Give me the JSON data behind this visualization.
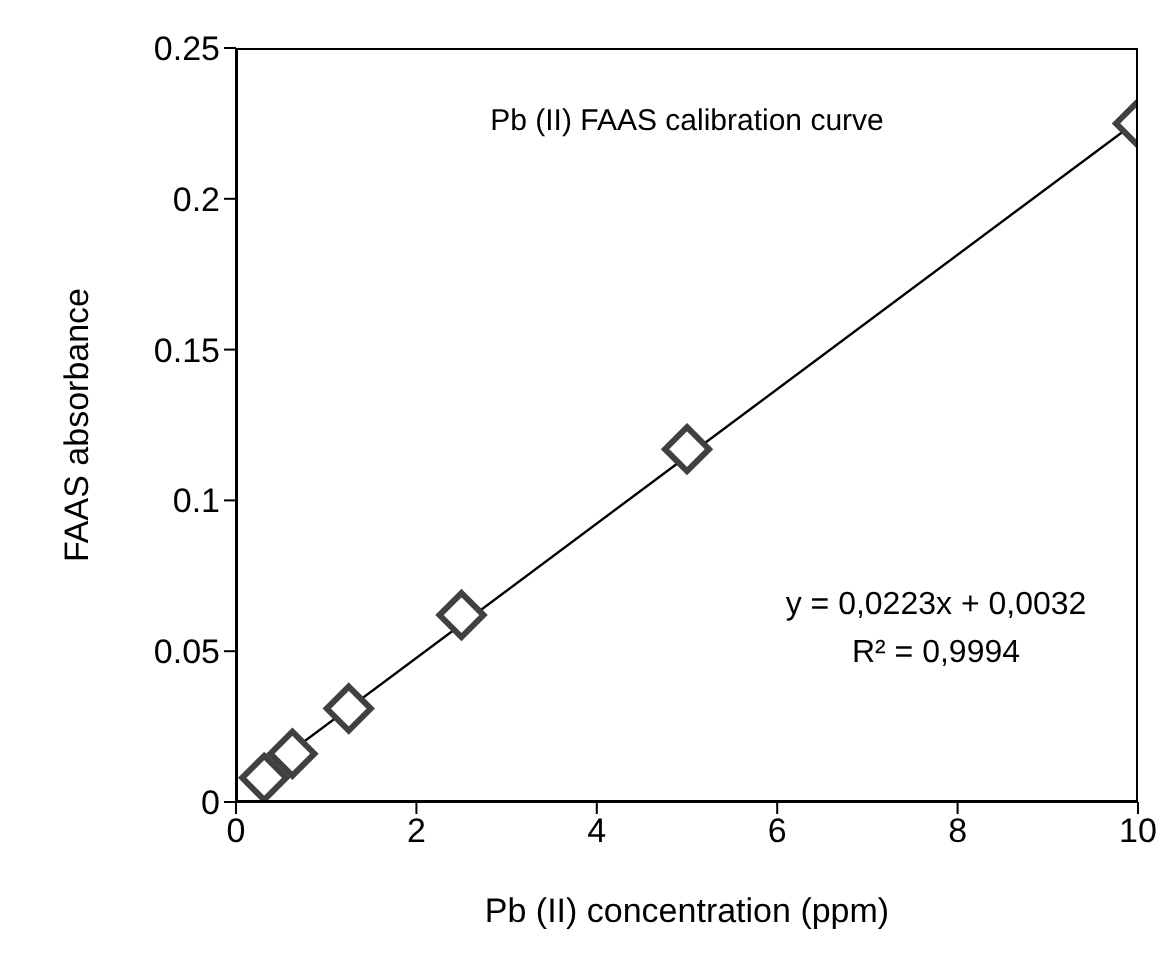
{
  "chart_data": {
    "type": "scatter",
    "title": "Pb (II) FAAS calibration curve",
    "xlabel": "Pb (II) concentration (ppm)",
    "ylabel": "FAAS absorbance",
    "annotations": [
      "y = 0,0223x + 0,0032",
      "R² = 0,9994"
    ],
    "xlim": [
      0,
      10
    ],
    "xticks": [
      0,
      2,
      4,
      6,
      8,
      10
    ],
    "ylim": [
      0,
      0.25
    ],
    "yticks": [
      {
        "value": 0,
        "label": "0"
      },
      {
        "value": 0.05,
        "label": "0.05"
      },
      {
        "value": 0.1,
        "label": "0.1"
      },
      {
        "value": 0.15,
        "label": "0.15"
      },
      {
        "value": 0.2,
        "label": "0.2"
      },
      {
        "value": 0.25,
        "label": "0.25"
      }
    ],
    "grid": false,
    "series": [
      {
        "type": "line",
        "color": "#000000",
        "marker": "none",
        "line_style": "solid",
        "x": [
          0.3125,
          10
        ],
        "values": [
          0.0102,
          0.226
        ]
      },
      {
        "color": "#404040",
        "marker": "diamond",
        "x": [
          0.3125,
          0.625,
          1.25,
          2.5,
          5,
          10
        ],
        "values": [
          0.008,
          0.016,
          0.031,
          0.062,
          0.117,
          0.225
        ]
      }
    ]
  }
}
